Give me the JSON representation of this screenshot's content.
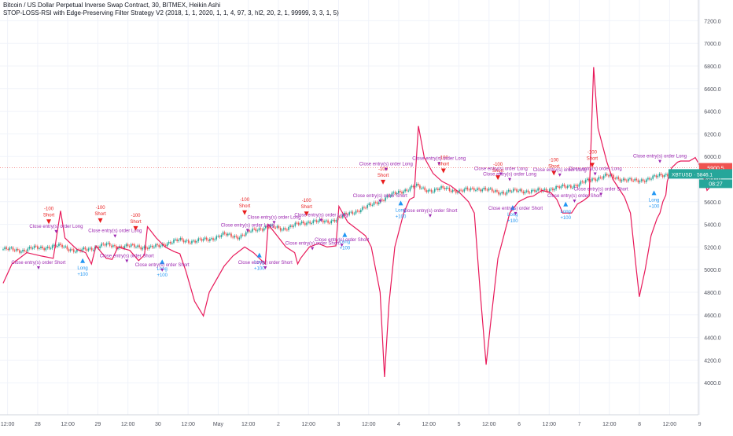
{
  "legend": {
    "symbol_line": "Bitcoin / US Dollar Perpetual Inverse Swap Contract, 30, BITMEX, Heikin Ashi",
    "strategy_line": "STOP-LOSS-RSI with Edge-Preserving Filter Strategy V2 (2018, 1, 1, 2020, 1, 1, 4, 97, 3, hl2, 20, 2, 1, 99999, 3, 3, 1, 5)"
  },
  "price_labels": {
    "last_price": "5900.5",
    "ticker": "XBTUSD",
    "ticker_price": "5846.1",
    "countdown": "08:27"
  },
  "colors": {
    "up_candle": "#26a69a",
    "down_candle": "#ef5350",
    "filter_line": "#e8195a",
    "long_arrow": "#2196f3",
    "short_arrow": "#e91e1e",
    "exit_arrow": "#9c27b0",
    "marker_text": "#9c27b0",
    "price_line": "#ef5350",
    "ticker_badge": "#26a69a"
  },
  "chart_data": {
    "type": "line",
    "title": "",
    "xlabel": "",
    "ylabel": "",
    "ylim": [
      3800,
      7300
    ],
    "grid": true,
    "x_ticks": [
      "12:00",
      "28",
      "12:00",
      "29",
      "12:00",
      "30",
      "12:00",
      "May",
      "12:00",
      "2",
      "12:00",
      "3",
      "12:00",
      "4",
      "12:00",
      "5",
      "12:00",
      "6",
      "12:00",
      "7",
      "12:00",
      "8",
      "12:00",
      "9"
    ],
    "y_ticks": [
      "7200.0",
      "7000.0",
      "6800.0",
      "6600.0",
      "6400.0",
      "6200.0",
      "6000.0",
      "5800.0",
      "5600.0",
      "5400.0",
      "5200.0",
      "5000.0",
      "4800.0",
      "4600.0",
      "4400.0",
      "4200.0",
      "4000.0"
    ],
    "x_range": [
      0,
      23.5
    ],
    "series": [
      {
        "role": "price",
        "points": [
          [
            0,
            5180
          ],
          [
            0.7,
            5170
          ],
          [
            1,
            5190
          ],
          [
            1.6,
            5200
          ],
          [
            2,
            5210
          ],
          [
            2.5,
            5160
          ],
          [
            3,
            5190
          ],
          [
            3.5,
            5220
          ],
          [
            4,
            5200
          ],
          [
            4.5,
            5210
          ],
          [
            5,
            5190
          ],
          [
            5.5,
            5230
          ],
          [
            6,
            5260
          ],
          [
            6.5,
            5250
          ],
          [
            7,
            5270
          ],
          [
            7.5,
            5310
          ],
          [
            8,
            5290
          ],
          [
            8.5,
            5350
          ],
          [
            9,
            5380
          ],
          [
            9.5,
            5360
          ],
          [
            10,
            5400
          ],
          [
            10.5,
            5430
          ],
          [
            11,
            5420
          ],
          [
            11.5,
            5470
          ],
          [
            12,
            5520
          ],
          [
            12.5,
            5570
          ],
          [
            13,
            5640
          ],
          [
            13.5,
            5690
          ],
          [
            14,
            5740
          ],
          [
            14.3,
            5710
          ],
          [
            14.6,
            5700
          ],
          [
            15,
            5720
          ],
          [
            15.5,
            5690
          ],
          [
            16,
            5720
          ],
          [
            16.5,
            5700
          ],
          [
            17,
            5680
          ],
          [
            17.5,
            5700
          ],
          [
            18,
            5690
          ],
          [
            18.5,
            5710
          ],
          [
            19,
            5730
          ],
          [
            19.5,
            5750
          ],
          [
            20,
            5800
          ],
          [
            20.5,
            5830
          ],
          [
            21,
            5800
          ],
          [
            21.5,
            5780
          ],
          [
            22,
            5810
          ],
          [
            22.5,
            5840
          ],
          [
            23,
            5850
          ],
          [
            23.4,
            5846
          ]
        ]
      },
      {
        "role": "filter",
        "points": [
          [
            0,
            4880
          ],
          [
            0.3,
            5050
          ],
          [
            0.8,
            5150
          ],
          [
            1.3,
            5120
          ],
          [
            1.7,
            5100
          ],
          [
            1.95,
            5520
          ],
          [
            2.1,
            5280
          ],
          [
            2.5,
            5180
          ],
          [
            2.8,
            5150
          ],
          [
            3,
            5050
          ],
          [
            3.15,
            5210
          ],
          [
            3.5,
            5100
          ],
          [
            3.7,
            5090
          ],
          [
            3.9,
            5200
          ],
          [
            4.3,
            5170
          ],
          [
            4.6,
            5080
          ],
          [
            4.8,
            5130
          ],
          [
            4.9,
            5380
          ],
          [
            5.2,
            5280
          ],
          [
            5.5,
            5200
          ],
          [
            5.8,
            5160
          ],
          [
            6,
            5140
          ],
          [
            6.2,
            4990
          ],
          [
            6.5,
            4720
          ],
          [
            6.8,
            4590
          ],
          [
            7,
            4800
          ],
          [
            7.5,
            5030
          ],
          [
            7.8,
            5120
          ],
          [
            8.2,
            5200
          ],
          [
            8.5,
            5150
          ],
          [
            8.9,
            5050
          ],
          [
            9,
            5400
          ],
          [
            9.3,
            5300
          ],
          [
            9.6,
            5200
          ],
          [
            9.9,
            5150
          ],
          [
            10,
            5050
          ],
          [
            10.1,
            5100
          ],
          [
            10.4,
            5200
          ],
          [
            10.7,
            5230
          ],
          [
            11,
            5200
          ],
          [
            11.3,
            5210
          ],
          [
            11.4,
            5560
          ],
          [
            11.7,
            5420
          ],
          [
            12,
            5360
          ],
          [
            12.3,
            5300
          ],
          [
            12.5,
            5200
          ],
          [
            12.8,
            4800
          ],
          [
            12.95,
            4050
          ],
          [
            13.1,
            4700
          ],
          [
            13.3,
            5200
          ],
          [
            13.6,
            5500
          ],
          [
            13.8,
            5620
          ],
          [
            13.95,
            5640
          ],
          [
            14.1,
            6270
          ],
          [
            14.3,
            5990
          ],
          [
            14.6,
            5850
          ],
          [
            14.9,
            5780
          ],
          [
            15.2,
            5740
          ],
          [
            15.5,
            5680
          ],
          [
            15.8,
            5600
          ],
          [
            16,
            5500
          ],
          [
            16.2,
            4800
          ],
          [
            16.4,
            4160
          ],
          [
            16.55,
            4520
          ],
          [
            16.8,
            5100
          ],
          [
            17.2,
            5500
          ],
          [
            17.5,
            5600
          ],
          [
            17.8,
            5640
          ],
          [
            18,
            5650
          ],
          [
            18.3,
            5700
          ],
          [
            18.6,
            5680
          ],
          [
            18.8,
            5620
          ],
          [
            19,
            5500
          ],
          [
            19.3,
            5500
          ],
          [
            19.5,
            5580
          ],
          [
            19.7,
            5610
          ],
          [
            19.9,
            5650
          ],
          [
            20.05,
            6790
          ],
          [
            20.2,
            6250
          ],
          [
            20.5,
            5950
          ],
          [
            20.7,
            5800
          ],
          [
            20.9,
            5720
          ],
          [
            21.1,
            5640
          ],
          [
            21.3,
            5500
          ],
          [
            21.5,
            5000
          ],
          [
            21.6,
            4760
          ],
          [
            21.8,
            5000
          ],
          [
            22,
            5300
          ],
          [
            22.2,
            5450
          ],
          [
            22.3,
            5500
          ],
          [
            22.4,
            5600
          ],
          [
            22.5,
            5660
          ],
          [
            22.55,
            5780
          ],
          [
            22.7,
            5900
          ],
          [
            22.9,
            5950
          ],
          [
            23,
            5960
          ],
          [
            23.3,
            5960
          ],
          [
            23.5,
            5990
          ],
          [
            23.7,
            5900
          ],
          [
            23.9,
            5700
          ],
          [
            24.1,
            5760
          ]
        ]
      }
    ],
    "annotations": [
      {
        "text": "Short",
        "x": 1.55,
        "y": 5430,
        "kind": "short"
      },
      {
        "text": "-100",
        "x": 1.55,
        "y": 5430,
        "kind": "short"
      },
      {
        "text": "Long",
        "x": 2.7,
        "y": 5100,
        "kind": "long"
      },
      {
        "text": "+100",
        "x": 2.7,
        "y": 5100,
        "kind": "long"
      },
      {
        "text": "Short",
        "x": 3.3,
        "y": 5440,
        "kind": "short"
      },
      {
        "text": "-100",
        "x": 3.3,
        "y": 5440,
        "kind": "short"
      },
      {
        "text": "Short",
        "x": 4.5,
        "y": 5370,
        "kind": "short"
      },
      {
        "text": "-100",
        "x": 4.5,
        "y": 5370,
        "kind": "short"
      },
      {
        "text": "Long",
        "x": 5.4,
        "y": 5090,
        "kind": "long"
      },
      {
        "text": "+100",
        "x": 5.4,
        "y": 5090,
        "kind": "long"
      },
      {
        "text": "Short",
        "x": 8.2,
        "y": 5510,
        "kind": "short"
      },
      {
        "text": "-100",
        "x": 8.2,
        "y": 5510,
        "kind": "short"
      },
      {
        "text": "Long",
        "x": 8.7,
        "y": 5150,
        "kind": "long"
      },
      {
        "text": "+100",
        "x": 8.7,
        "y": 5150,
        "kind": "long"
      },
      {
        "text": "Short",
        "x": 10.3,
        "y": 5500,
        "kind": "short"
      },
      {
        "text": "-100",
        "x": 10.3,
        "y": 5500,
        "kind": "short"
      },
      {
        "text": "Long",
        "x": 11.6,
        "y": 5330,
        "kind": "long"
      },
      {
        "text": "+100",
        "x": 11.6,
        "y": 5330,
        "kind": "long"
      },
      {
        "text": "Short",
        "x": 12.9,
        "y": 5780,
        "kind": "short"
      },
      {
        "text": "-100",
        "x": 12.9,
        "y": 5780,
        "kind": "short"
      },
      {
        "text": "Long",
        "x": 13.5,
        "y": 5610,
        "kind": "long"
      },
      {
        "text": "+100",
        "x": 13.5,
        "y": 5610,
        "kind": "long"
      },
      {
        "text": "Short",
        "x": 14.95,
        "y": 5880,
        "kind": "short"
      },
      {
        "text": "-100",
        "x": 14.95,
        "y": 5880,
        "kind": "short"
      },
      {
        "text": "Short",
        "x": 16.8,
        "y": 5820,
        "kind": "short"
      },
      {
        "text": "-100",
        "x": 16.8,
        "y": 5820,
        "kind": "short"
      },
      {
        "text": "Long",
        "x": 17.3,
        "y": 5570,
        "kind": "long"
      },
      {
        "text": "+100",
        "x": 17.3,
        "y": 5570,
        "kind": "long"
      },
      {
        "text": "Short",
        "x": 18.7,
        "y": 5860,
        "kind": "short"
      },
      {
        "text": "-100",
        "x": 18.7,
        "y": 5860,
        "kind": "short"
      },
      {
        "text": "Long",
        "x": 19.1,
        "y": 5600,
        "kind": "long"
      },
      {
        "text": "+100",
        "x": 19.1,
        "y": 5600,
        "kind": "long"
      },
      {
        "text": "Short",
        "x": 20.0,
        "y": 5930,
        "kind": "short"
      },
      {
        "text": "-100",
        "x": 20.0,
        "y": 5930,
        "kind": "short"
      },
      {
        "text": "Long",
        "x": 22.1,
        "y": 5700,
        "kind": "long"
      },
      {
        "text": "+100",
        "x": 22.1,
        "y": 5700,
        "kind": "long"
      },
      {
        "text": "Close entry(s) order Long",
        "x": 1.8,
        "y": 5370,
        "kind": "exit"
      },
      {
        "text": "Close entry(s) order Short",
        "x": 1.2,
        "y": 5050,
        "kind": "exit"
      },
      {
        "text": "Close entry(s) order Long",
        "x": 3.8,
        "y": 5330,
        "kind": "exit"
      },
      {
        "text": "Close entry(s) order Short",
        "x": 4.2,
        "y": 5110,
        "kind": "exit"
      },
      {
        "text": "Close entry(s) order Short",
        "x": 5.4,
        "y": 5030,
        "kind": "exit"
      },
      {
        "text": "Close entry(s) order Long",
        "x": 8.3,
        "y": 5380,
        "kind": "exit"
      },
      {
        "text": "Close entry(s) order Long",
        "x": 9.2,
        "y": 5450,
        "kind": "exit"
      },
      {
        "text": "Close entry(s) order Short",
        "x": 8.9,
        "y": 5050,
        "kind": "exit"
      },
      {
        "text": "Close entry(s) order Long",
        "x": 10.8,
        "y": 5470,
        "kind": "exit"
      },
      {
        "text": "Close entry(s) order Short",
        "x": 10.5,
        "y": 5220,
        "kind": "exit"
      },
      {
        "text": "Close entry(s) order Short",
        "x": 11.5,
        "y": 5250,
        "kind": "exit"
      },
      {
        "text": "Close entry(s) order Long",
        "x": 13.0,
        "y": 5920,
        "kind": "exit"
      },
      {
        "text": "Close entry(s) order Short",
        "x": 12.8,
        "y": 5640,
        "kind": "exit"
      },
      {
        "text": "Close entry(s) order Long",
        "x": 14.8,
        "y": 5970,
        "kind": "exit"
      },
      {
        "text": "Close entry(s) order Short",
        "x": 14.5,
        "y": 5510,
        "kind": "exit"
      },
      {
        "text": "Close entry(s) order Long",
        "x": 16.9,
        "y": 5880,
        "kind": "exit"
      },
      {
        "text": "Close entry(s) order Long",
        "x": 17.2,
        "y": 5830,
        "kind": "exit"
      },
      {
        "text": "Close entry(s) order Short",
        "x": 17.4,
        "y": 5530,
        "kind": "exit"
      },
      {
        "text": "Close entry(s) order Long",
        "x": 18.9,
        "y": 5870,
        "kind": "exit"
      },
      {
        "text": "Close entry(s) order Short",
        "x": 19.4,
        "y": 5640,
        "kind": "exit"
      },
      {
        "text": "Close entry(s) order Long",
        "x": 20.1,
        "y": 5880,
        "kind": "exit"
      },
      {
        "text": "Close entry(s) order Short",
        "x": 20.3,
        "y": 5700,
        "kind": "exit"
      },
      {
        "text": "Close entry(s) order Long",
        "x": 22.3,
        "y": 5990,
        "kind": "exit"
      }
    ]
  }
}
